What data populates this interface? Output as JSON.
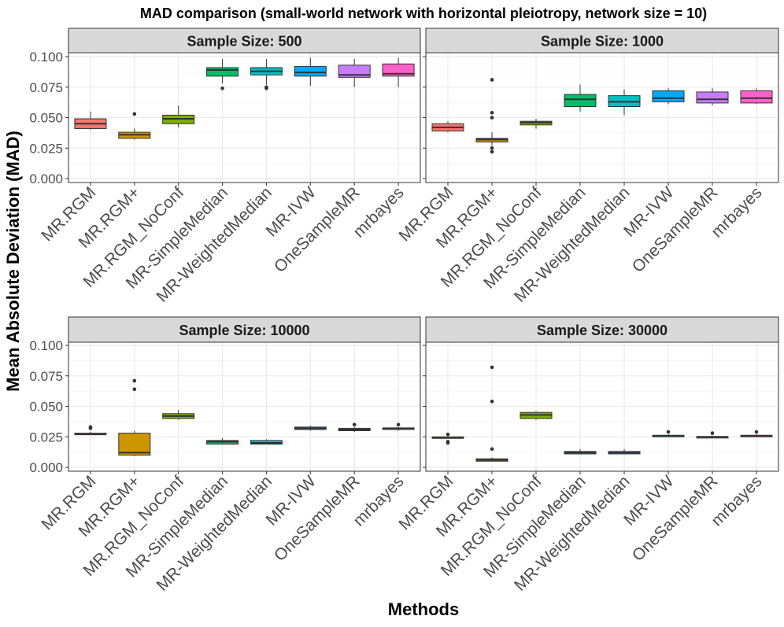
{
  "chart_data": {
    "type": "boxplot",
    "title": "MAD comparison (small-world network with horizontal pleiotropy, network size = 10)",
    "xlabel": "Methods",
    "ylabel": "Mean Absolute Deviation (MAD)",
    "ylim": [
      0,
      0.12
    ],
    "yticks": [
      0,
      0.025,
      0.05,
      0.075,
      0.1
    ],
    "ytick_labels": [
      "0.000",
      "0.025",
      "0.050",
      "0.075",
      "0.100"
    ],
    "categories": [
      "MR.RGM",
      "MR.RGM+",
      "MR.RGM_NoConf",
      "MR-SimpleMedian",
      "MR-WeightedMedian",
      "MR-IVW",
      "OneSampleMR",
      "mrbayes"
    ],
    "colors": [
      "#F8766D",
      "#CD9600",
      "#7CAE00",
      "#00BE67",
      "#00BFC4",
      "#00A9FF",
      "#C77CFF",
      "#FF61CC"
    ],
    "grid": true,
    "legend": "none",
    "panels": [
      {
        "label": "Sample Size: 500",
        "boxes": [
          {
            "lower_whisker": 0.04,
            "q1": 0.041,
            "median": 0.045,
            "q3": 0.049,
            "upper_whisker": 0.055,
            "outliers": []
          },
          {
            "lower_whisker": 0.032,
            "q1": 0.033,
            "median": 0.036,
            "q3": 0.038,
            "upper_whisker": 0.041,
            "outliers": [
              0.053
            ]
          },
          {
            "lower_whisker": 0.042,
            "q1": 0.045,
            "median": 0.049,
            "q3": 0.052,
            "upper_whisker": 0.06,
            "outliers": []
          },
          {
            "lower_whisker": 0.078,
            "q1": 0.084,
            "median": 0.089,
            "q3": 0.091,
            "upper_whisker": 0.098,
            "outliers": [
              0.074
            ]
          },
          {
            "lower_whisker": 0.077,
            "q1": 0.085,
            "median": 0.088,
            "q3": 0.091,
            "upper_whisker": 0.098,
            "outliers": [
              0.075,
              0.074
            ]
          },
          {
            "lower_whisker": 0.076,
            "q1": 0.084,
            "median": 0.087,
            "q3": 0.092,
            "upper_whisker": 0.099,
            "outliers": []
          },
          {
            "lower_whisker": 0.075,
            "q1": 0.083,
            "median": 0.085,
            "q3": 0.093,
            "upper_whisker": 0.098,
            "outliers": []
          },
          {
            "lower_whisker": 0.075,
            "q1": 0.084,
            "median": 0.086,
            "q3": 0.094,
            "upper_whisker": 0.099,
            "outliers": []
          }
        ]
      },
      {
        "label": "Sample Size: 1000",
        "boxes": [
          {
            "lower_whisker": 0.038,
            "q1": 0.039,
            "median": 0.042,
            "q3": 0.045,
            "upper_whisker": 0.047,
            "outliers": []
          },
          {
            "lower_whisker": 0.027,
            "q1": 0.03,
            "median": 0.032,
            "q3": 0.033,
            "upper_whisker": 0.038,
            "outliers": [
              0.081,
              0.054,
              0.05,
              0.025,
              0.022
            ]
          },
          {
            "lower_whisker": 0.041,
            "q1": 0.044,
            "median": 0.046,
            "q3": 0.047,
            "upper_whisker": 0.049,
            "outliers": []
          },
          {
            "lower_whisker": 0.055,
            "q1": 0.059,
            "median": 0.065,
            "q3": 0.069,
            "upper_whisker": 0.077,
            "outliers": []
          },
          {
            "lower_whisker": 0.052,
            "q1": 0.059,
            "median": 0.063,
            "q3": 0.068,
            "upper_whisker": 0.073,
            "outliers": []
          },
          {
            "lower_whisker": 0.061,
            "q1": 0.063,
            "median": 0.066,
            "q3": 0.072,
            "upper_whisker": 0.074,
            "outliers": []
          },
          {
            "lower_whisker": 0.06,
            "q1": 0.062,
            "median": 0.065,
            "q3": 0.071,
            "upper_whisker": 0.074,
            "outliers": []
          },
          {
            "lower_whisker": 0.061,
            "q1": 0.062,
            "median": 0.066,
            "q3": 0.072,
            "upper_whisker": 0.074,
            "outliers": []
          }
        ]
      },
      {
        "label": "Sample Size: 10000",
        "boxes": [
          {
            "lower_whisker": 0.027,
            "q1": 0.027,
            "median": 0.027,
            "q3": 0.028,
            "upper_whisker": 0.029,
            "outliers": [
              0.033,
              0.032
            ]
          },
          {
            "lower_whisker": 0.009,
            "q1": 0.01,
            "median": 0.012,
            "q3": 0.028,
            "upper_whisker": 0.03,
            "outliers": [
              0.071,
              0.064
            ]
          },
          {
            "lower_whisker": 0.039,
            "q1": 0.04,
            "median": 0.042,
            "q3": 0.044,
            "upper_whisker": 0.047,
            "outliers": []
          },
          {
            "lower_whisker": 0.019,
            "q1": 0.019,
            "median": 0.021,
            "q3": 0.022,
            "upper_whisker": 0.024,
            "outliers": []
          },
          {
            "lower_whisker": 0.019,
            "q1": 0.019,
            "median": 0.02,
            "q3": 0.022,
            "upper_whisker": 0.023,
            "outliers": []
          },
          {
            "lower_whisker": 0.03,
            "q1": 0.031,
            "median": 0.032,
            "q3": 0.033,
            "upper_whisker": 0.034,
            "outliers": []
          },
          {
            "lower_whisker": 0.029,
            "q1": 0.03,
            "median": 0.031,
            "q3": 0.032,
            "upper_whisker": 0.033,
            "outliers": [
              0.035
            ]
          },
          {
            "lower_whisker": 0.03,
            "q1": 0.031,
            "median": 0.032,
            "q3": 0.032,
            "upper_whisker": 0.033,
            "outliers": [
              0.035
            ]
          }
        ]
      },
      {
        "label": "Sample Size: 30000",
        "boxes": [
          {
            "lower_whisker": 0.024,
            "q1": 0.024,
            "median": 0.024,
            "q3": 0.025,
            "upper_whisker": 0.026,
            "outliers": [
              0.027,
              0.021,
              0.02
            ]
          },
          {
            "lower_whisker": 0.005,
            "q1": 0.005,
            "median": 0.006,
            "q3": 0.007,
            "upper_whisker": 0.008,
            "outliers": [
              0.082,
              0.054,
              0.015
            ]
          },
          {
            "lower_whisker": 0.039,
            "q1": 0.04,
            "median": 0.043,
            "q3": 0.045,
            "upper_whisker": 0.046,
            "outliers": []
          },
          {
            "lower_whisker": 0.011,
            "q1": 0.011,
            "median": 0.012,
            "q3": 0.013,
            "upper_whisker": 0.015,
            "outliers": []
          },
          {
            "lower_whisker": 0.011,
            "q1": 0.011,
            "median": 0.012,
            "q3": 0.013,
            "upper_whisker": 0.015,
            "outliers": []
          },
          {
            "lower_whisker": 0.025,
            "q1": 0.025,
            "median": 0.026,
            "q3": 0.026,
            "upper_whisker": 0.027,
            "outliers": [
              0.029
            ]
          },
          {
            "lower_whisker": 0.024,
            "q1": 0.024,
            "median": 0.025,
            "q3": 0.025,
            "upper_whisker": 0.026,
            "outliers": [
              0.028
            ]
          },
          {
            "lower_whisker": 0.025,
            "q1": 0.025,
            "median": 0.026,
            "q3": 0.026,
            "upper_whisker": 0.027,
            "outliers": [
              0.029
            ]
          }
        ]
      }
    ]
  }
}
